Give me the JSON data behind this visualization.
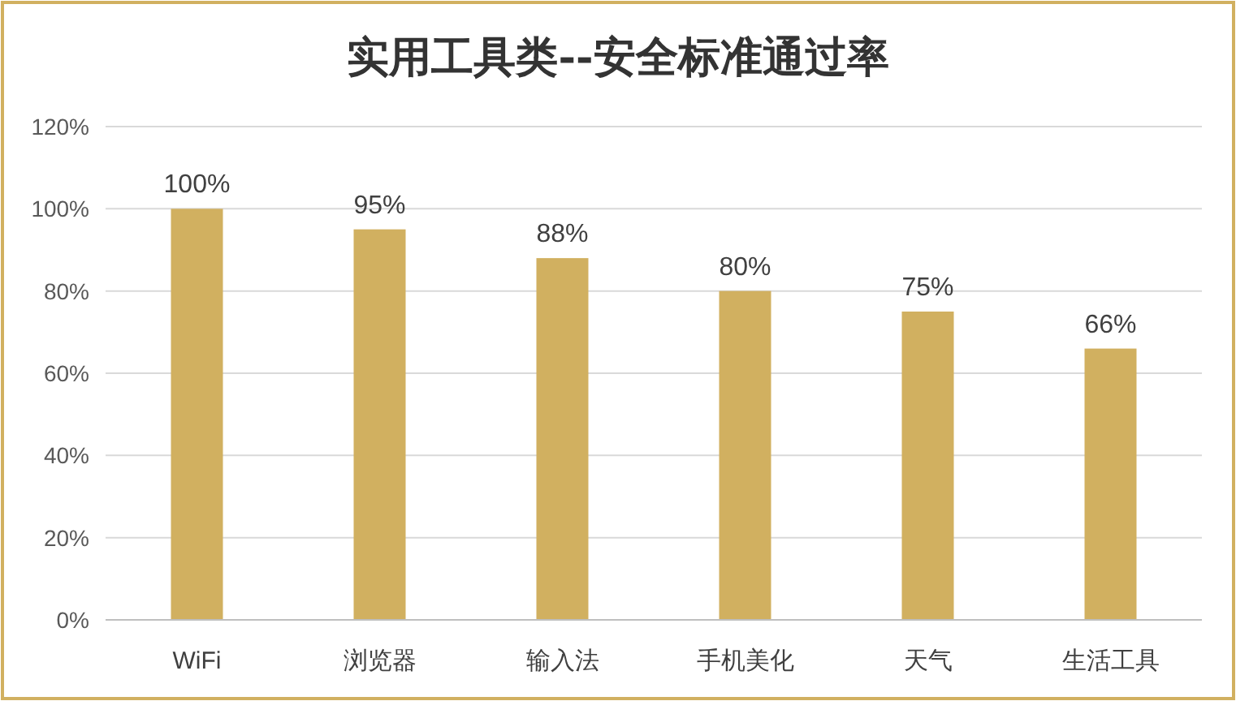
{
  "chart_data": {
    "type": "bar",
    "title": "实用工具类--安全标准通过率",
    "categories": [
      "WiFi",
      "浏览器",
      "输入法",
      "手机美化",
      "天气",
      "生活工具"
    ],
    "values": [
      100,
      95,
      88,
      80,
      75,
      66
    ],
    "value_labels": [
      "100%",
      "95%",
      "88%",
      "80%",
      "75%",
      "66%"
    ],
    "color": "#d1b060",
    "ylim": [
      0,
      120
    ],
    "yticks": [
      {
        "value": 0,
        "label": "0%"
      },
      {
        "value": 20,
        "label": "20%"
      },
      {
        "value": 40,
        "label": "40%"
      },
      {
        "value": 60,
        "label": "60%"
      },
      {
        "value": 80,
        "label": "80%"
      },
      {
        "value": 100,
        "label": "100%"
      },
      {
        "value": 120,
        "label": "120%"
      }
    ],
    "grid": "y"
  }
}
